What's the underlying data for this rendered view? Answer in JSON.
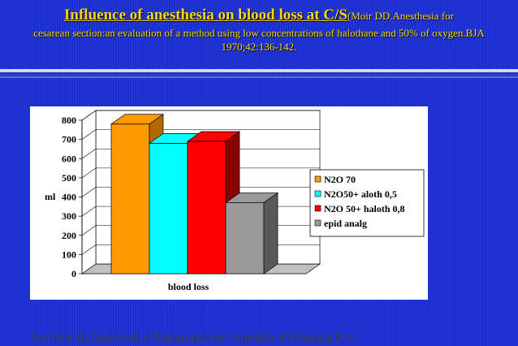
{
  "title": {
    "main": "Influence of anesthesia on blood loss  at C/S",
    "ref": "(Moir DD.Anesthesia for",
    "rest": "cesarean section:an evaluation of a method using low concentrations of halothane and 50% of oxygen.BJA 1970;42:136-142."
  },
  "footer": "Servizio di Anestesia e Rianimazione Ospedale di Faenza(RA)",
  "chart_data": {
    "type": "bar",
    "categories": [
      "blood loss"
    ],
    "series": [
      {
        "name": "N2O 70",
        "values": [
          780
        ],
        "color": "#ff9900",
        "side": "#b26a00"
      },
      {
        "name": "N2O50+ aloth 0,5",
        "values": [
          680
        ],
        "color": "#00ffff",
        "side": "#009999"
      },
      {
        "name": "N2O 50+ haloth 0,8",
        "values": [
          690
        ],
        "color": "#ff0000",
        "side": "#8a0000"
      },
      {
        "name": "epid analg",
        "values": [
          370
        ],
        "color": "#999999",
        "side": "#595959"
      }
    ],
    "xlabel": "blood loss",
    "ylabel": "ml",
    "ylim": [
      0,
      800
    ],
    "yticks": [
      0,
      100,
      200,
      300,
      400,
      500,
      600,
      700,
      800
    ],
    "grid": true,
    "legend": "right",
    "three_d": true
  }
}
